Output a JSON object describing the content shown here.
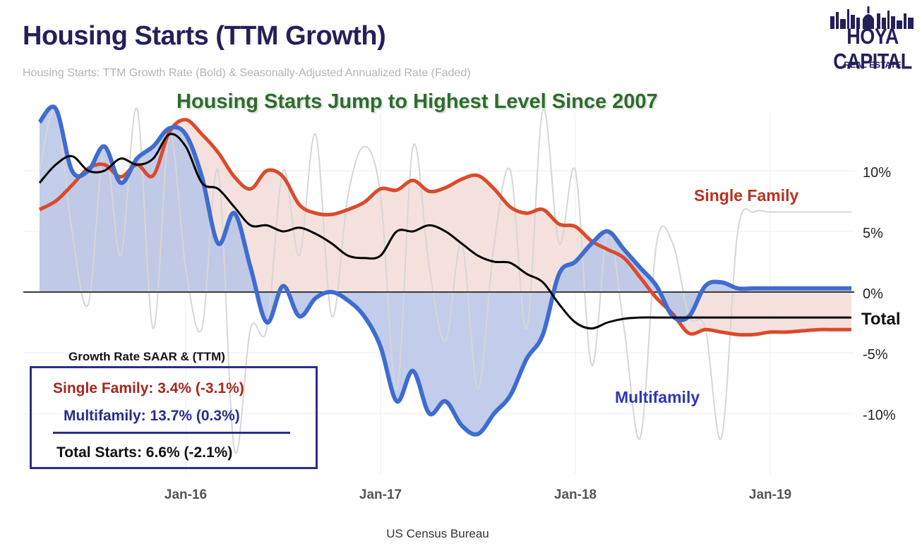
{
  "header": {
    "title": "Housing Starts (TTM Growth)",
    "subtitle": "Housing Starts: TTM Growth Rate (Bold) & Seasonally-Adjusted Annualized Rate (Faded)",
    "headline": "Housing Starts Jump to Highest Level Since 2007"
  },
  "logo": {
    "main": "HOYA CAPITAL",
    "sub": "REAL ESTATE",
    "color": "#24205a"
  },
  "legend": {
    "heading": "Growth Rate SAAR & (TTM)",
    "single_family": "Single Family: 3.4% (-3.1%)",
    "multifamily": "Multifamily: 13.7% (0.3%)",
    "total": "Total Starts: 6.6% (-2.1%)"
  },
  "source": "US Census Bureau",
  "colors": {
    "single_family": "#db4a2b",
    "multifamily": "#3e6ccf",
    "total": "#000000",
    "saar": "#d6d6d6",
    "sf_fill": "#f2dcd8",
    "mf_fill": "#b6c4e6",
    "headline": "#2e6b2f",
    "title": "#24205a"
  },
  "chart_data": {
    "type": "line",
    "x_unit": "month",
    "x": [
      "2015-04",
      "2015-05",
      "2015-06",
      "2015-07",
      "2015-08",
      "2015-09",
      "2015-10",
      "2015-11",
      "2015-12",
      "2016-01",
      "2016-02",
      "2016-03",
      "2016-04",
      "2016-05",
      "2016-06",
      "2016-07",
      "2016-08",
      "2016-09",
      "2016-10",
      "2016-11",
      "2016-12",
      "2017-01",
      "2017-02",
      "2017-03",
      "2017-04",
      "2017-05",
      "2017-06",
      "2017-07",
      "2017-08",
      "2017-09",
      "2017-10",
      "2017-11",
      "2017-12",
      "2018-01",
      "2018-02",
      "2018-03",
      "2018-04",
      "2018-05",
      "2018-06",
      "2018-07",
      "2018-08",
      "2018-09",
      "2018-10",
      "2018-11",
      "2018-12",
      "2019-01",
      "2019-02",
      "2019-03",
      "2019-04",
      "2019-05",
      "2019-06"
    ],
    "series": [
      {
        "name": "Single Family",
        "values": [
          6.8,
          7.5,
          8.8,
          10.2,
          10.5,
          9.5,
          10.5,
          9.6,
          13.2,
          14.2,
          13.0,
          11.5,
          9.5,
          8.5,
          10.0,
          9.5,
          7.2,
          6.5,
          6.4,
          6.8,
          7.4,
          8.5,
          8.4,
          9.2,
          8.3,
          8.6,
          9.3,
          9.6,
          8.5,
          7.0,
          6.5,
          6.8,
          5.6,
          5.4,
          4.2,
          3.5,
          2.8,
          1.2,
          -0.5,
          -1.8,
          -3.4,
          -3.1,
          -3.3,
          -3.5,
          -3.5,
          -3.3,
          -3.3,
          -3.2,
          -3.1,
          -3.1,
          -3.1
        ]
      },
      {
        "name": "Multifamily",
        "values": [
          14.0,
          20.0,
          10.0,
          10.0,
          12.0,
          9.0,
          11.0,
          12.0,
          13.5,
          13.0,
          9.5,
          4.0,
          6.5,
          2.0,
          -2.5,
          0.5,
          -2.0,
          -0.5,
          0.0,
          -0.7,
          -2.0,
          -4.5,
          -9.0,
          -6.5,
          -10.0,
          -9.0,
          -11.0,
          -11.7,
          -10.0,
          -8.5,
          -5.5,
          -3.5,
          1.5,
          2.5,
          4.0,
          5.0,
          3.5,
          2.0,
          0.5,
          -2.0,
          -2.0,
          0.5,
          0.8,
          0.3,
          0.3,
          0.3,
          0.3,
          0.3,
          0.3,
          0.3,
          0.3
        ]
      },
      {
        "name": "Total",
        "values": [
          9.0,
          10.5,
          11.2,
          10.0,
          10.0,
          11.0,
          10.5,
          11.0,
          13.0,
          12.0,
          9.0,
          8.5,
          7.0,
          5.5,
          5.5,
          5.0,
          5.3,
          4.8,
          4.0,
          3.0,
          2.8,
          3.0,
          5.0,
          5.0,
          5.5,
          5.0,
          4.0,
          3.0,
          2.5,
          2.4,
          1.5,
          0.8,
          -1.0,
          -2.5,
          -3.0,
          -2.5,
          -2.2,
          -2.1,
          -2.1,
          -2.1,
          -2.1,
          -2.1,
          -2.1,
          -2.1,
          -2.1,
          -2.1,
          -2.1,
          -2.1,
          -2.1,
          -2.1,
          -2.1
        ]
      },
      {
        "name": "SAAR",
        "values": [
          10.0,
          15.0,
          5.0,
          -1.0,
          12.0,
          3.0,
          20.0,
          -3.0,
          13.0,
          2.0,
          -3.0,
          10.0,
          -13.0,
          -3.0,
          -3.0,
          10.0,
          3.0,
          13.0,
          -2.0,
          8.0,
          12.0,
          8.0,
          -8.0,
          12.0,
          2.0,
          -4.0,
          4.0,
          -8.0,
          4.0,
          10.0,
          -3.0,
          15.0,
          4.0,
          10.0,
          -6.0,
          5.0,
          -3.0,
          -12.0,
          4.0,
          4.0,
          -2.0,
          -3.0,
          -12.0,
          5.0,
          6.6,
          6.6,
          6.6,
          6.6,
          6.6,
          6.6,
          6.6
        ]
      }
    ],
    "series_labels": {
      "single_family": "Single Family",
      "multifamily": "Multifamily",
      "total": "Total"
    },
    "x_ticks": [
      {
        "label": "Jan-16",
        "at": "2016-01"
      },
      {
        "label": "Jan-17",
        "at": "2017-01"
      },
      {
        "label": "Jan-18",
        "at": "2018-01"
      },
      {
        "label": "Jan-19",
        "at": "2019-01"
      }
    ],
    "y_ticks": [
      {
        "label": "10%",
        "value": 10
      },
      {
        "label": "5%",
        "value": 5
      },
      {
        "label": "0%",
        "value": 0
      },
      {
        "label": "-5%",
        "value": -5
      },
      {
        "label": "-10%",
        "value": -10
      }
    ],
    "ylim": [
      -15,
      15
    ],
    "grid": true
  }
}
